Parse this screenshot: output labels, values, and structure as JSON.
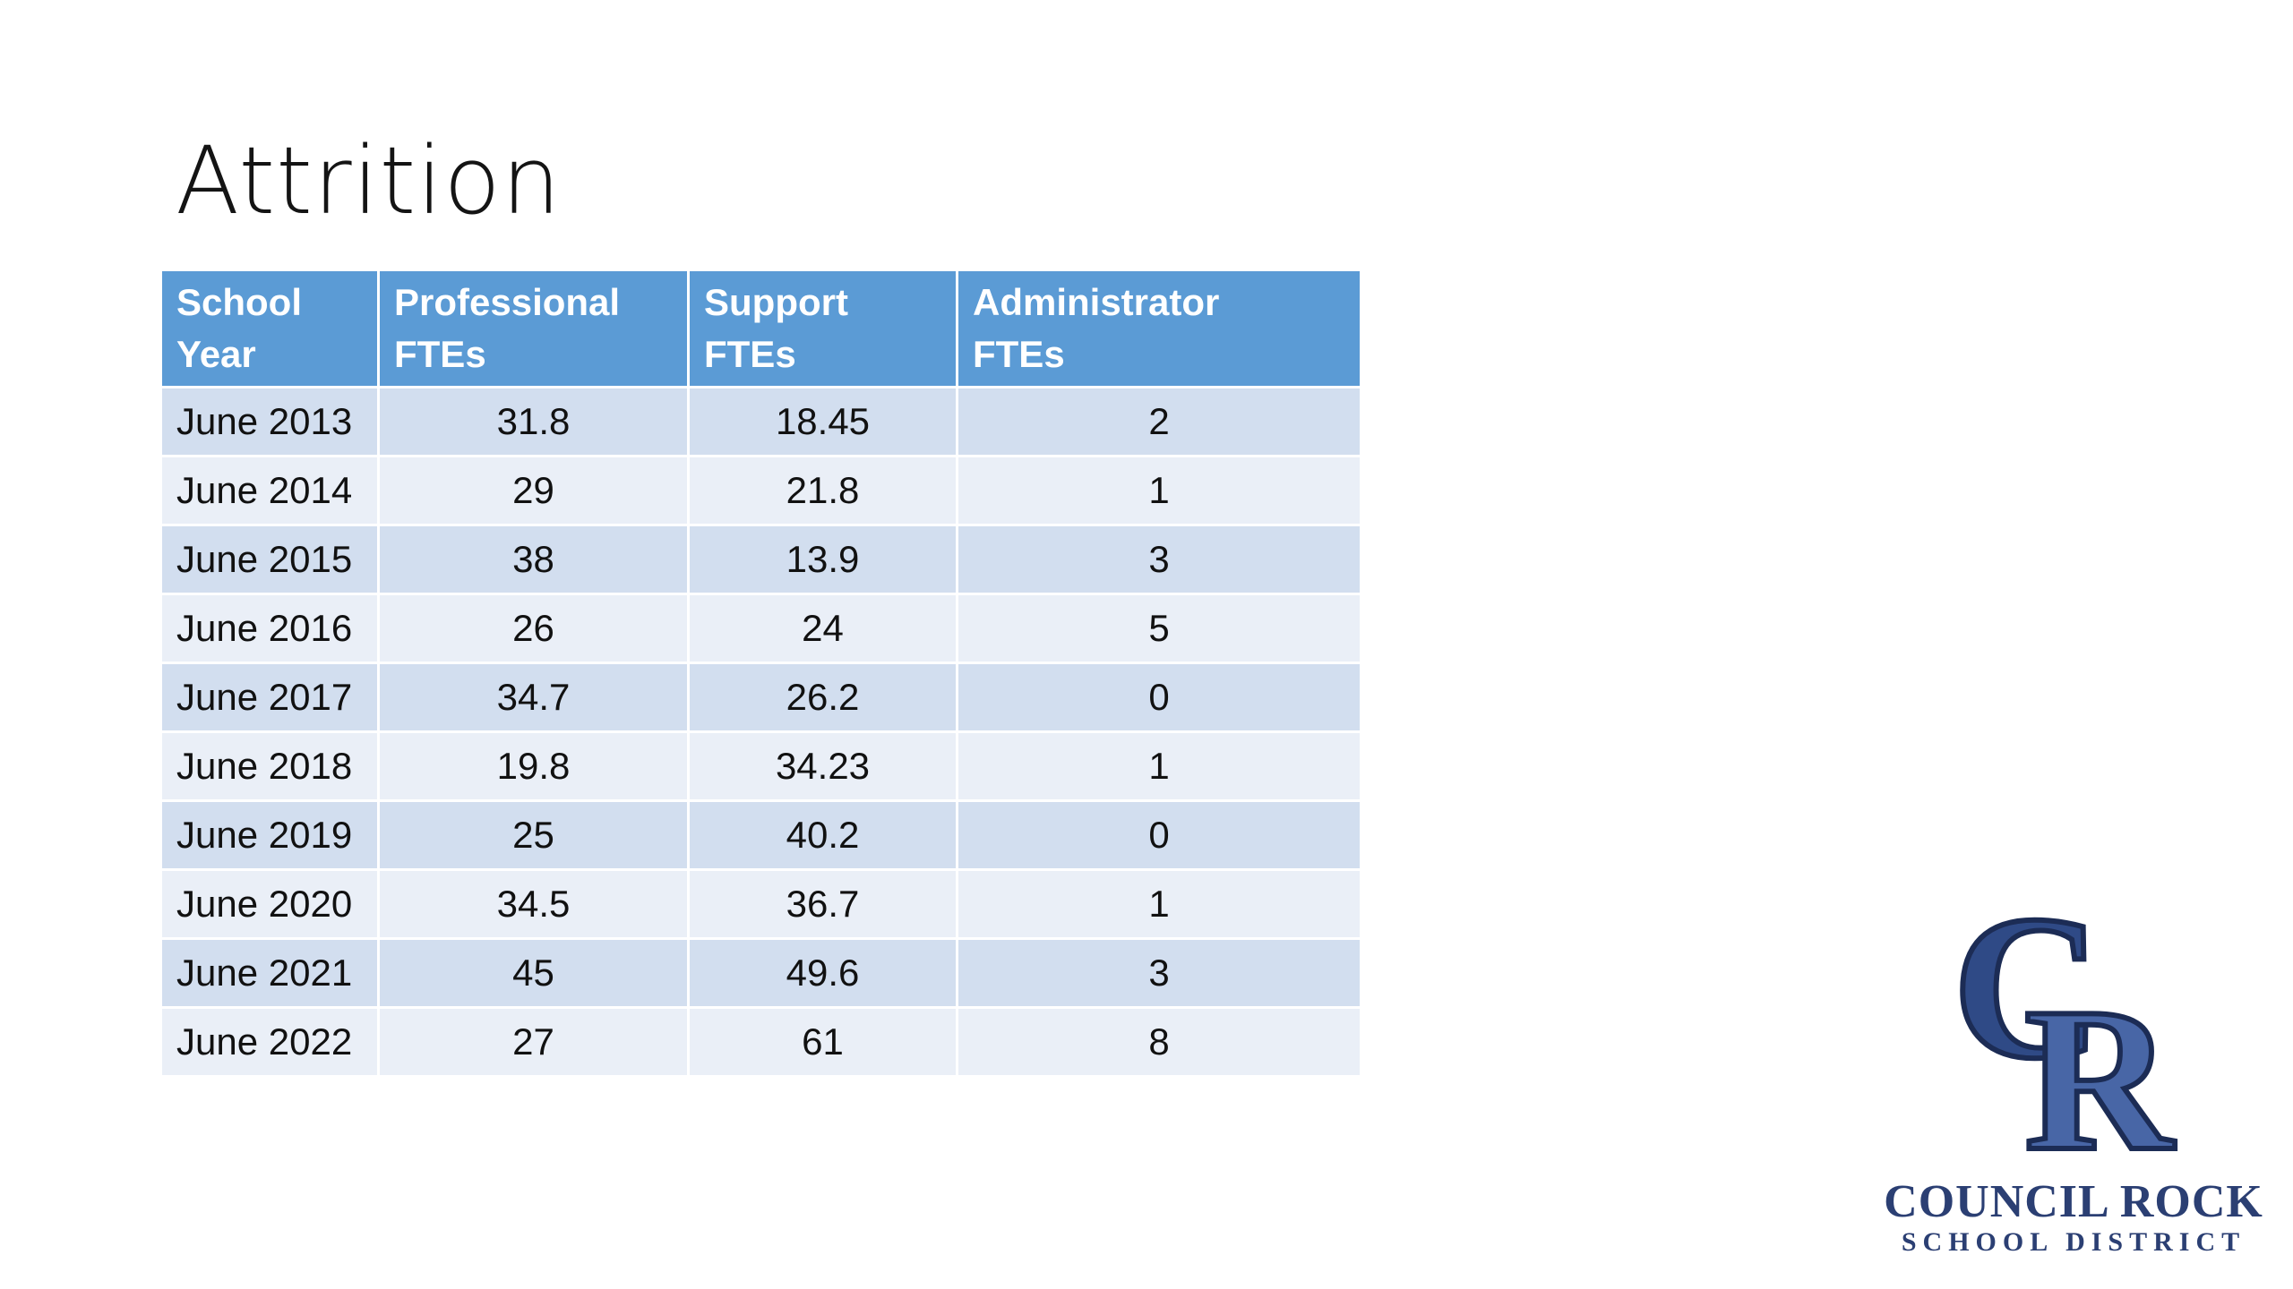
{
  "slide": {
    "title": "Attrition"
  },
  "table": {
    "headers": [
      [
        "School",
        "Year"
      ],
      [
        "Professional",
        "FTEs"
      ],
      [
        "Support",
        "FTEs"
      ],
      [
        "Administrator",
        "FTEs"
      ]
    ],
    "rows": [
      [
        "June 2013",
        "31.8",
        "18.45",
        "2"
      ],
      [
        "June 2014",
        "29",
        "21.8",
        "1"
      ],
      [
        "June 2015",
        "38",
        "13.9",
        "3"
      ],
      [
        "June 2016",
        "26",
        "24",
        "5"
      ],
      [
        "June 2017",
        "34.7",
        "26.2",
        "0"
      ],
      [
        "June 2018",
        "19.8",
        "34.23",
        "1"
      ],
      [
        "June 2019",
        "25",
        "40.2",
        "0"
      ],
      [
        "June 2020",
        "34.5",
        "36.7",
        "1"
      ],
      [
        "June 2021",
        "45",
        "49.6",
        "3"
      ],
      [
        "June 2022",
        "27",
        "61",
        "8"
      ]
    ]
  },
  "logo": {
    "monogram": "CR",
    "line1": "COUNCIL ROCK",
    "line2": "SCHOOL DISTRICT"
  },
  "colors": {
    "header_bg": "#5b9bd5",
    "row_odd_bg": "#d2deef",
    "row_even_bg": "#eaeff7",
    "logo_navy": "#2b3f73"
  }
}
